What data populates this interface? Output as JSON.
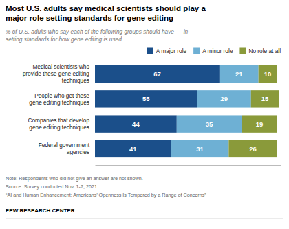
{
  "chart_data": {
    "type": "bar",
    "orientation": "horizontal",
    "stacked": true,
    "data_labels": true,
    "tick_labels": false,
    "legend": "top-right",
    "title": "Most U.S. adults say medical scientists should play a\nmajor role setting standards for gene editing",
    "subtitle": "% of U.S. adults who say each of the following groups should have __ in\nsetting standards for how gene editing is used",
    "categories": [
      "Medical scientists who\nprovide these gene editing\ntechniques",
      "People who get these\ngene editing techniques",
      "Companies that develop\ngene editing techniques",
      "Federal government\nagencies"
    ],
    "series": [
      {
        "name": "A major role",
        "color": "#1B4F8A",
        "values": [
          67,
          55,
          44,
          41
        ]
      },
      {
        "name": "A minor role",
        "color": "#6EB0D4",
        "values": [
          21,
          29,
          35,
          31
        ]
      },
      {
        "name": "No role at all",
        "color": "#8A9A3A",
        "values": [
          10,
          15,
          19,
          26
        ]
      }
    ],
    "xlim": [
      0,
      100
    ],
    "notes": [
      "Note: Respondents who did not give an answer are not shown.",
      "Source: Survey conducted Nov. 1-7, 2021.",
      "“AI and Human Enhancement: Americans’ Openness Is Tempered by a Range of Concerns”"
    ],
    "footer": "PEW RESEARCH CENTER"
  }
}
